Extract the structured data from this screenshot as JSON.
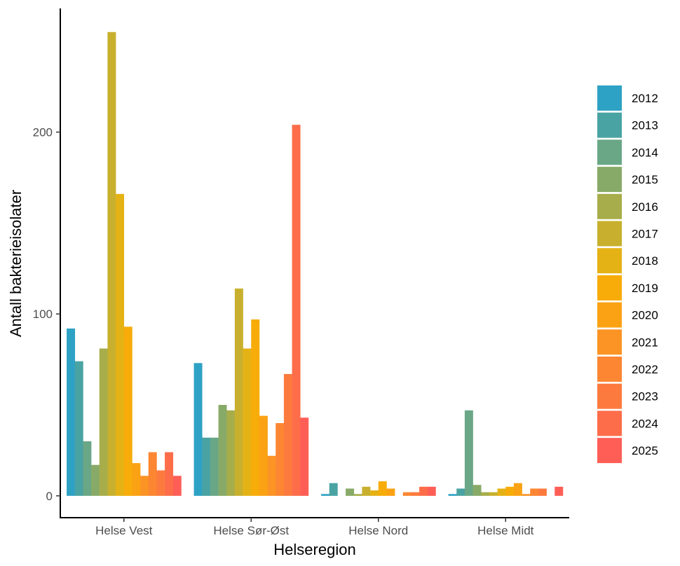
{
  "chart_data": {
    "type": "bar",
    "title": "",
    "xlabel": "Helseregion",
    "ylabel": "Antall bakterieisolater",
    "ylim": [
      -12,
      268
    ],
    "yticks": [
      0,
      100,
      200
    ],
    "categories": [
      "Helse Vest",
      "Helse Sør-Øst",
      "Helse Nord",
      "Helse Midt"
    ],
    "legend_position": "right",
    "series": [
      {
        "name": "2012",
        "color": "#2ea2c4",
        "values": [
          92,
          73,
          1,
          1
        ]
      },
      {
        "name": "2013",
        "color": "#4aa3a3",
        "values": [
          74,
          32,
          7,
          4
        ]
      },
      {
        "name": "2014",
        "color": "#6aa786",
        "values": [
          30,
          32,
          0,
          47
        ]
      },
      {
        "name": "2015",
        "color": "#88aa68",
        "values": [
          17,
          50,
          4,
          6
        ]
      },
      {
        "name": "2016",
        "color": "#a7ad4a",
        "values": [
          81,
          47,
          1,
          2
        ]
      },
      {
        "name": "2017",
        "color": "#c8b02e",
        "values": [
          255,
          114,
          5,
          2
        ]
      },
      {
        "name": "2018",
        "color": "#e5b216",
        "values": [
          166,
          81,
          3,
          4
        ]
      },
      {
        "name": "2019",
        "color": "#f7ac0a",
        "values": [
          93,
          97,
          8,
          5
        ]
      },
      {
        "name": "2020",
        "color": "#fba214",
        "values": [
          18,
          44,
          4,
          7
        ]
      },
      {
        "name": "2021",
        "color": "#fb9424",
        "values": [
          11,
          22,
          0,
          1
        ]
      },
      {
        "name": "2022",
        "color": "#fc8632",
        "values": [
          24,
          40,
          2,
          4
        ]
      },
      {
        "name": "2023",
        "color": "#fd7a3e",
        "values": [
          14,
          67,
          2,
          4
        ]
      },
      {
        "name": "2024",
        "color": "#fe6d4a",
        "values": [
          24,
          204,
          5,
          0
        ]
      },
      {
        "name": "2025",
        "color": "#ff5e57",
        "values": [
          11,
          43,
          5,
          5
        ]
      }
    ]
  }
}
